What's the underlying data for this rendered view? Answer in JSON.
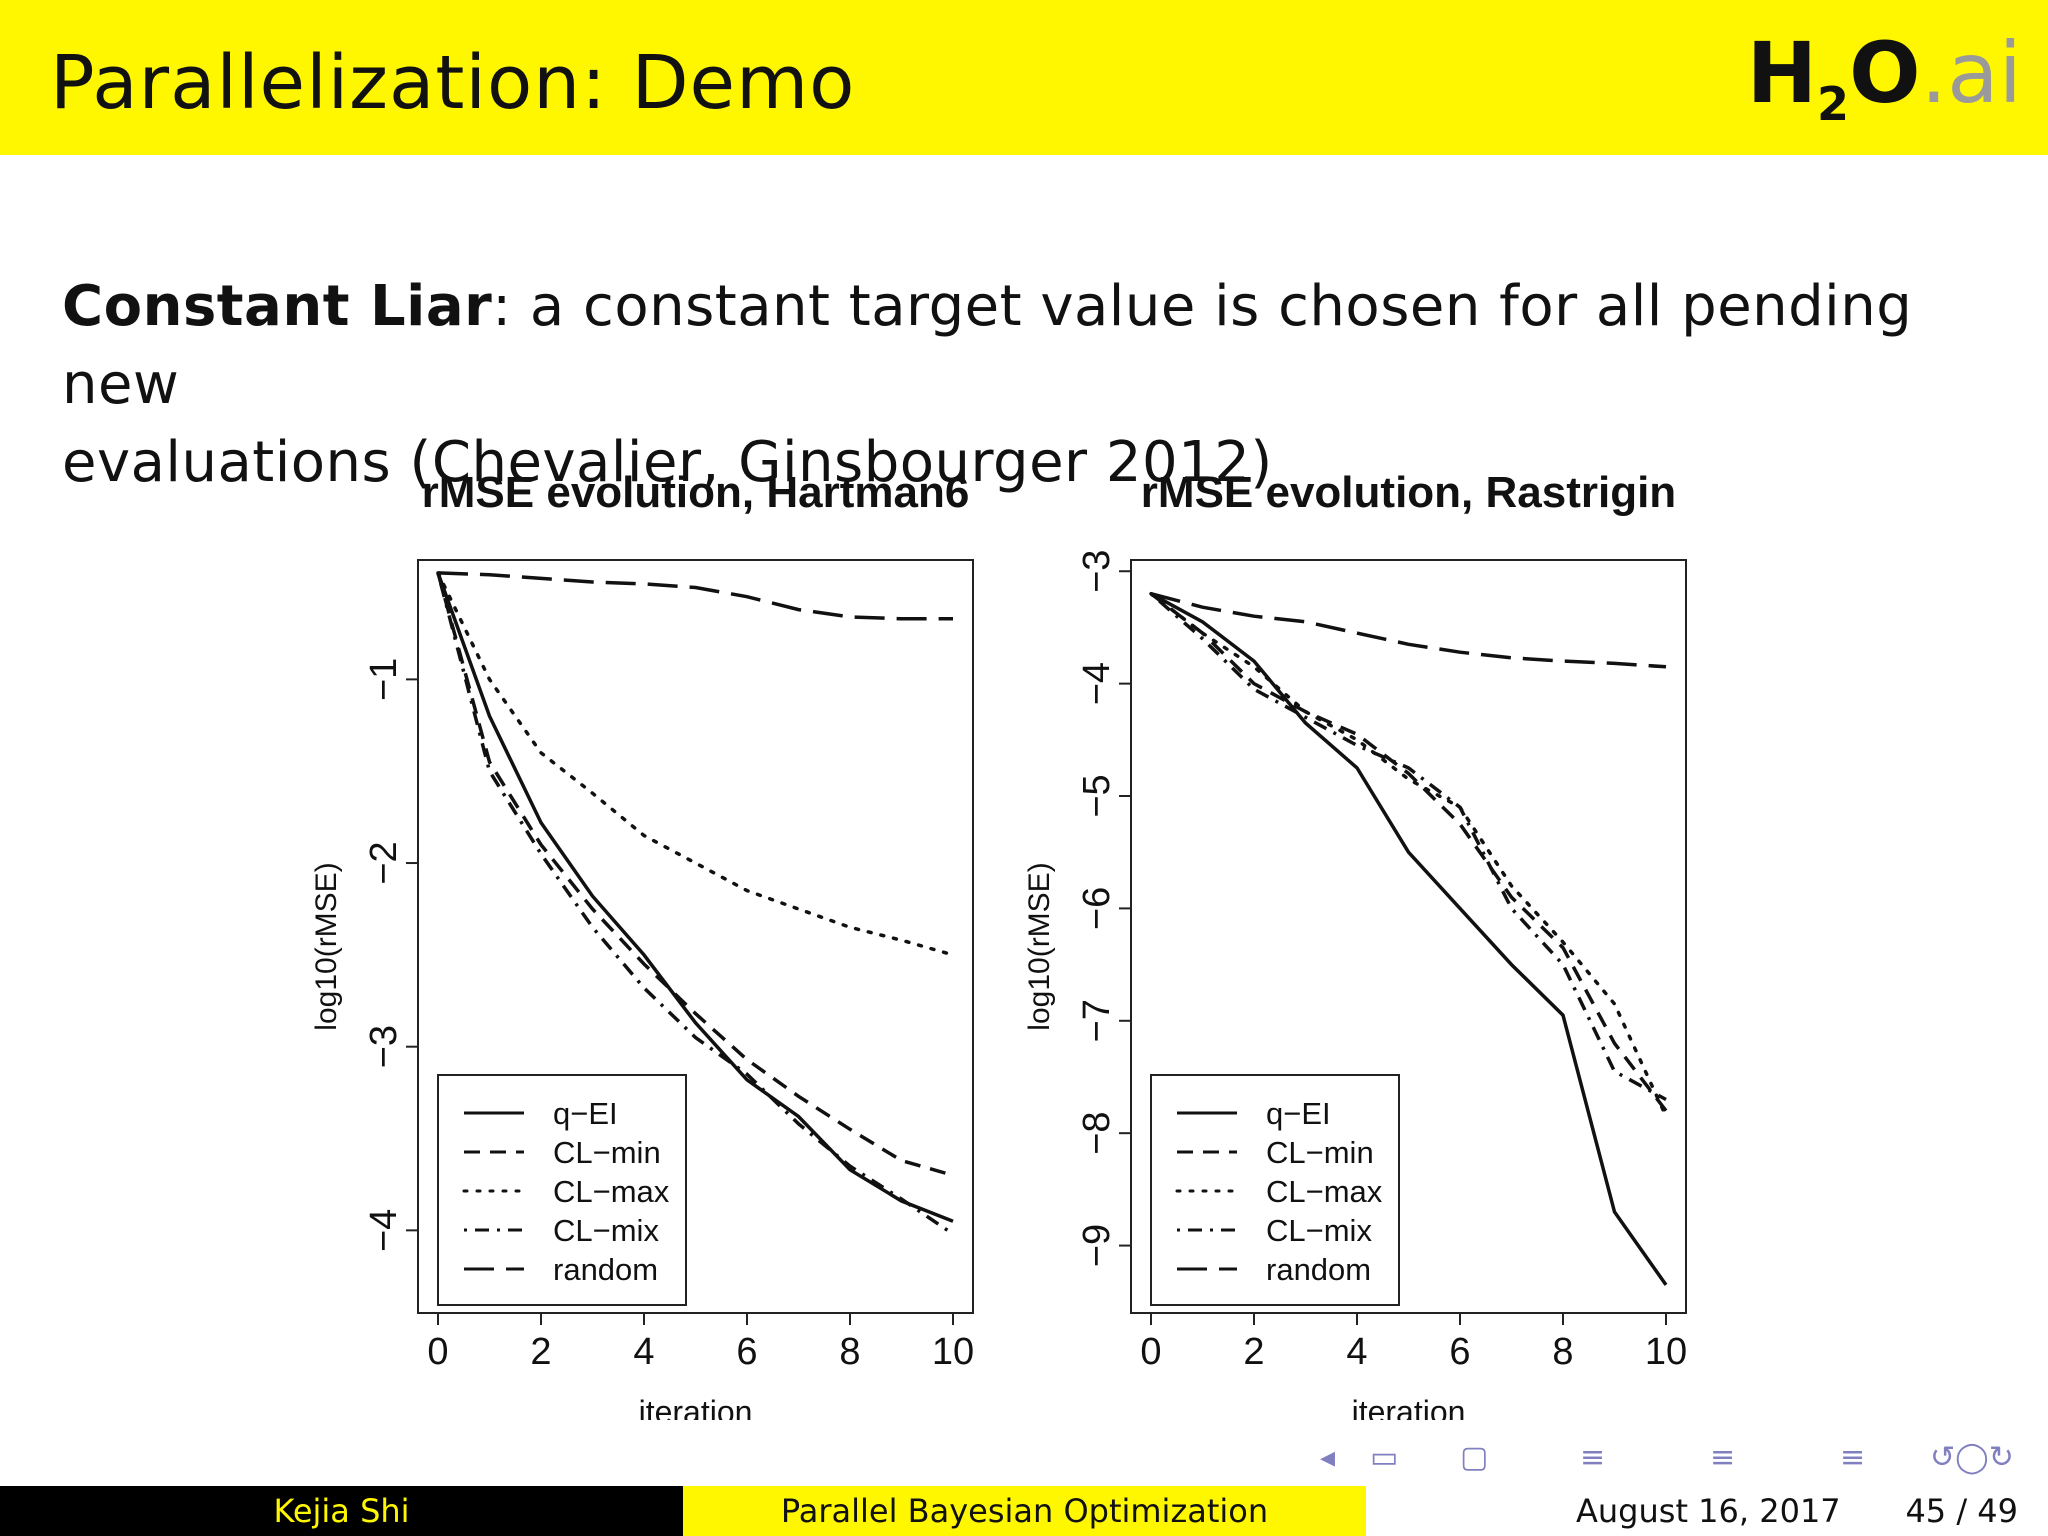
{
  "slide": {
    "title": "Parallelization: Demo",
    "logo": {
      "main": "H",
      "sub": "2",
      "o": "O",
      "suffix": ".ai"
    },
    "body": {
      "term": "Constant Liar",
      "text_line1": ": a constant target value is chosen for all pending new",
      "text_line2": "evaluations (Chevalier, Ginsbourger 2012)"
    }
  },
  "footer": {
    "author": "Kejia Shi",
    "title": "Parallel Bayesian Optimization",
    "date": "August 16, 2017",
    "page": "45 / 49"
  },
  "navigation": {
    "icons": [
      "nav-left-arrow",
      "nav-section",
      "nav-frame",
      "nav-subsection",
      "nav-slide",
      "nav-align",
      "nav-zoom"
    ],
    "color": "#8080c0"
  },
  "chart_data": [
    {
      "type": "line",
      "title": "rMSE evolution, Hartman6",
      "xlabel": "iteration",
      "ylabel": "log10(rMSE)",
      "xlim": [
        0,
        10
      ],
      "ylim": [
        -4.45,
        -0.35
      ],
      "xticks": [
        0,
        2,
        4,
        6,
        8,
        10
      ],
      "yticks": [
        -4,
        -3,
        -2,
        -1
      ],
      "legend": "bottom-left",
      "x": [
        0,
        1,
        2,
        3,
        4,
        5,
        6,
        7,
        8,
        9,
        10
      ],
      "series": [
        {
          "name": "q−EI",
          "style": "solid",
          "values": [
            -0.42,
            -1.2,
            -1.78,
            -2.18,
            -2.5,
            -2.87,
            -3.18,
            -3.38,
            -3.67,
            -3.84,
            -3.95
          ]
        },
        {
          "name": "CL−min",
          "style": "dashed",
          "values": [
            -0.42,
            -1.45,
            -1.9,
            -2.25,
            -2.55,
            -2.82,
            -3.07,
            -3.27,
            -3.45,
            -3.62,
            -3.7
          ]
        },
        {
          "name": "CL−max",
          "style": "dotted",
          "values": [
            -0.42,
            -1.0,
            -1.4,
            -1.62,
            -1.85,
            -2.0,
            -2.15,
            -2.25,
            -2.35,
            -2.42,
            -2.5
          ]
        },
        {
          "name": "CL−mix",
          "style": "dashdot",
          "values": [
            -0.42,
            -1.5,
            -1.95,
            -2.35,
            -2.68,
            -2.95,
            -3.15,
            -3.42,
            -3.65,
            -3.83,
            -4.02
          ]
        },
        {
          "name": "random",
          "style": "longdash",
          "values": [
            -0.42,
            -0.43,
            -0.45,
            -0.47,
            -0.48,
            -0.5,
            -0.55,
            -0.62,
            -0.66,
            -0.67,
            -0.67
          ]
        }
      ]
    },
    {
      "type": "line",
      "title": "rMSE evolution, Rastrigin",
      "xlabel": "iteration",
      "ylabel": "log10(rMSE)",
      "xlim": [
        0,
        10
      ],
      "ylim": [
        -9.6,
        -2.9
      ],
      "xticks": [
        0,
        2,
        4,
        6,
        8,
        10
      ],
      "yticks": [
        -9,
        -8,
        -7,
        -6,
        -5,
        -4,
        -3
      ],
      "legend": "bottom-left",
      "x": [
        0,
        1,
        2,
        3,
        4,
        5,
        6,
        7,
        8,
        9,
        10
      ],
      "series": [
        {
          "name": "q−EI",
          "style": "solid",
          "values": [
            -3.2,
            -3.45,
            -3.8,
            -4.35,
            -4.75,
            -5.5,
            -6.0,
            -6.5,
            -6.95,
            -8.7,
            -9.35
          ]
        },
        {
          "name": "CL−min",
          "style": "dashed",
          "values": [
            -3.2,
            -3.55,
            -4.0,
            -4.25,
            -4.45,
            -4.8,
            -5.25,
            -5.9,
            -6.35,
            -7.2,
            -7.8
          ]
        },
        {
          "name": "CL−max",
          "style": "dotted",
          "values": [
            -3.2,
            -3.55,
            -3.85,
            -4.25,
            -4.5,
            -4.85,
            -5.1,
            -5.8,
            -6.3,
            -6.85,
            -7.85
          ]
        },
        {
          "name": "CL−mix",
          "style": "dashdot",
          "values": [
            -3.2,
            -3.6,
            -4.05,
            -4.3,
            -4.55,
            -4.75,
            -5.1,
            -6.0,
            -6.5,
            -7.45,
            -7.7
          ]
        },
        {
          "name": "random",
          "style": "longdash",
          "values": [
            -3.2,
            -3.32,
            -3.4,
            -3.45,
            -3.55,
            -3.65,
            -3.72,
            -3.77,
            -3.8,
            -3.82,
            -3.85
          ]
        }
      ]
    }
  ]
}
